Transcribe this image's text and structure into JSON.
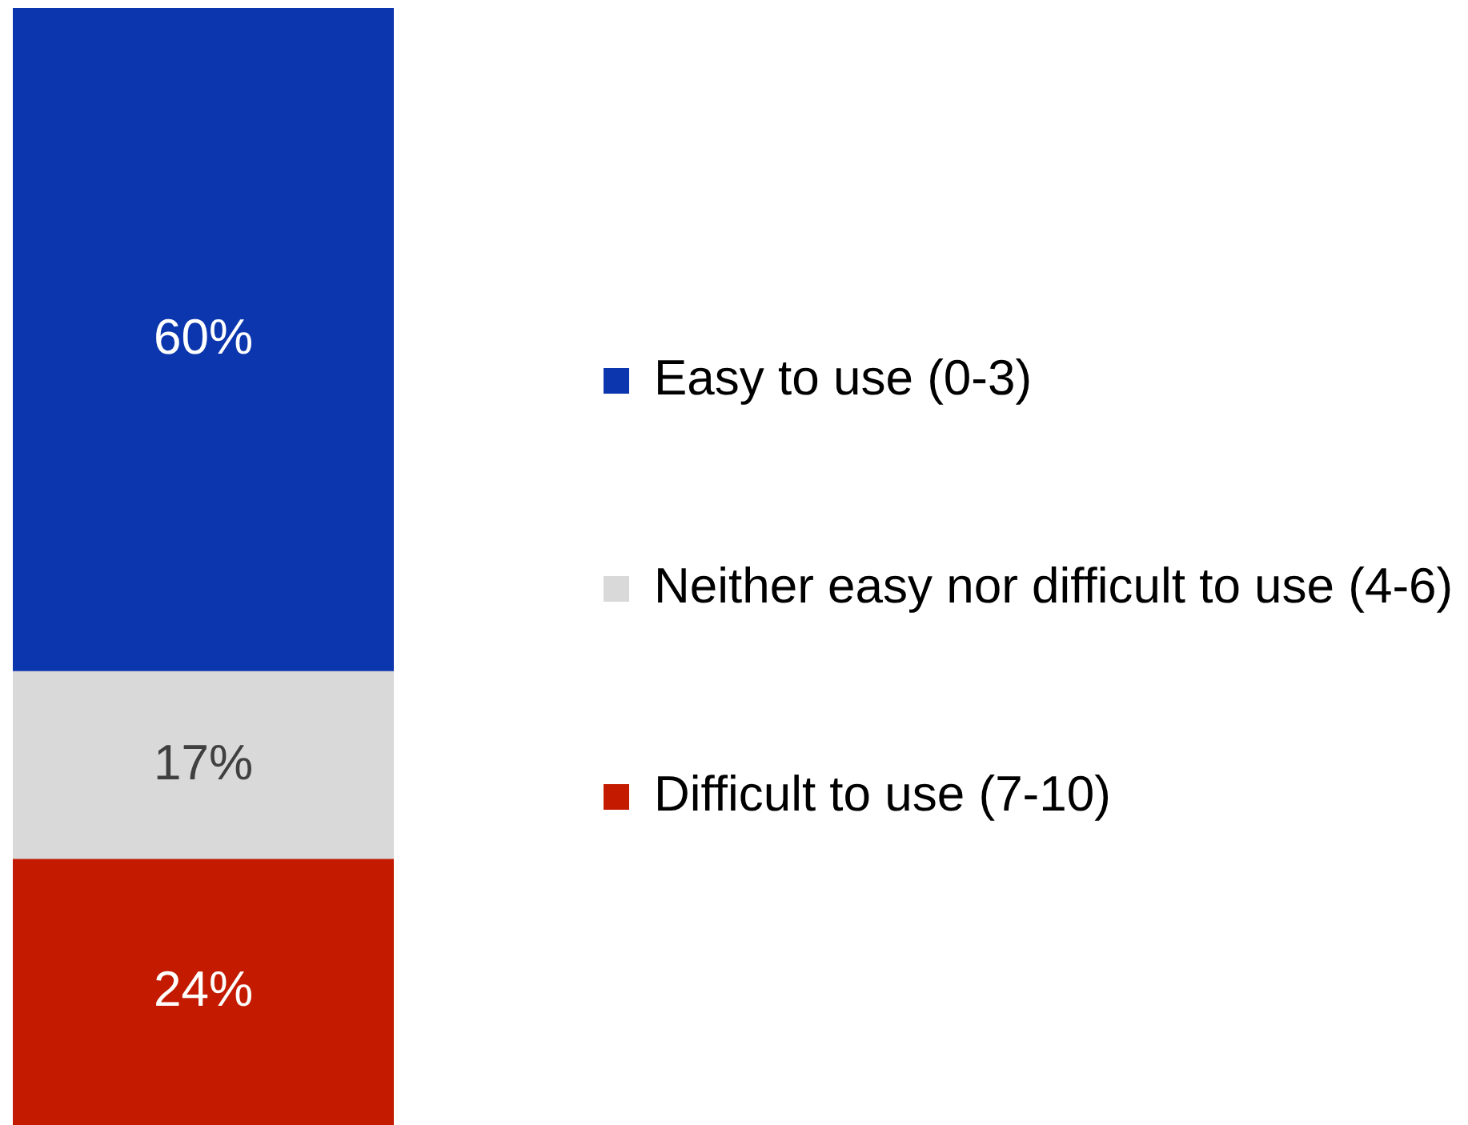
{
  "chart_data": {
    "type": "bar",
    "stacked": true,
    "categories": [
      null
    ],
    "series": [
      {
        "name": "Difficult to use (7-10)",
        "color": "#c31a00",
        "values": [
          24
        ],
        "value_labels": [
          "24%"
        ]
      },
      {
        "name": "Neither easy nor difficult to use (4-6)",
        "color": "#d9d9d9",
        "values": [
          17
        ],
        "value_labels": [
          "17%"
        ]
      },
      {
        "name": "Easy to use (0-3)",
        "color": "#0c36ae",
        "values": [
          60
        ],
        "value_labels": [
          "60%"
        ]
      }
    ],
    "legend": "right",
    "tick_labels": false
  }
}
